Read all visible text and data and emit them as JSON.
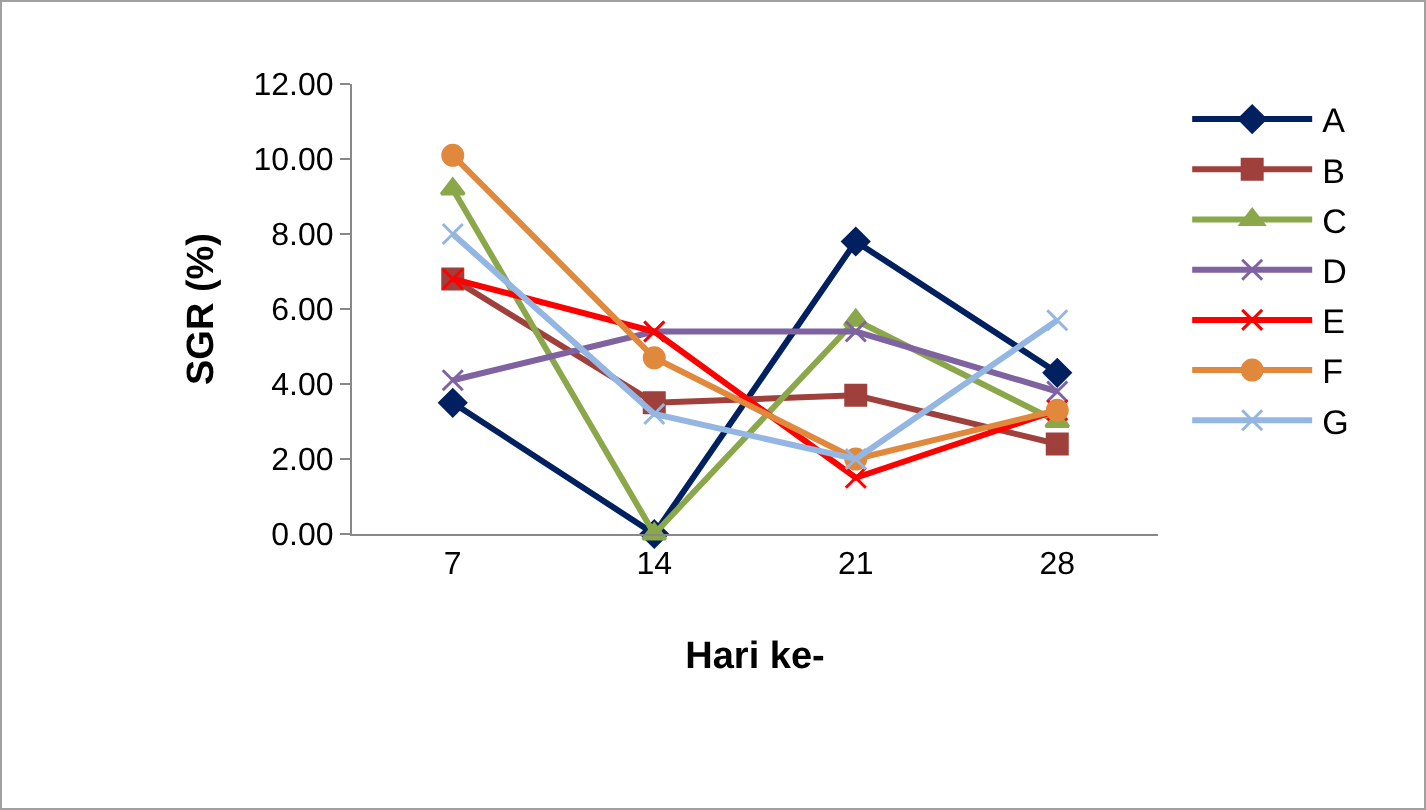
{
  "chart_data": {
    "type": "line",
    "xlabel": "Hari ke-",
    "ylabel": "SGR (%)",
    "categories": [
      "7",
      "14",
      "21",
      "28"
    ],
    "series": [
      {
        "name": "A",
        "color": "#002060",
        "marker": "diamond",
        "values": [
          3.5,
          0,
          7.8,
          4.3
        ]
      },
      {
        "name": "B",
        "color": "#a0403c",
        "marker": "square",
        "values": [
          6.8,
          3.5,
          3.7,
          2.4
        ]
      },
      {
        "name": "C",
        "color": "#8aa84a",
        "marker": "triangle",
        "values": [
          9.2,
          0,
          5.7,
          3.0
        ]
      },
      {
        "name": "D",
        "color": "#7f62a0",
        "marker": "cross",
        "values": [
          4.1,
          5.4,
          5.4,
          3.8
        ]
      },
      {
        "name": "E",
        "color": "#ff0000",
        "marker": "cross",
        "values": [
          6.8,
          5.4,
          1.5,
          3.3
        ]
      },
      {
        "name": "F",
        "color": "#e0883c",
        "marker": "circle",
        "values": [
          10.1,
          4.7,
          2.0,
          3.3
        ]
      },
      {
        "name": "G",
        "color": "#94b6e2",
        "marker": "cross",
        "values": [
          8.0,
          3.2,
          2.0,
          5.7
        ]
      }
    ],
    "ylim": [
      0,
      12
    ],
    "yticks": [
      {
        "value": 0,
        "label": "0.00"
      },
      {
        "value": 2,
        "label": "2.00"
      },
      {
        "value": 4,
        "label": "4.00"
      },
      {
        "value": 6,
        "label": "6.00"
      },
      {
        "value": 8,
        "label": "8.00"
      },
      {
        "value": 10,
        "label": "10.00"
      },
      {
        "value": 12,
        "label": "12.00"
      }
    ],
    "grid": false,
    "legend": "right",
    "line_style": "solid"
  }
}
